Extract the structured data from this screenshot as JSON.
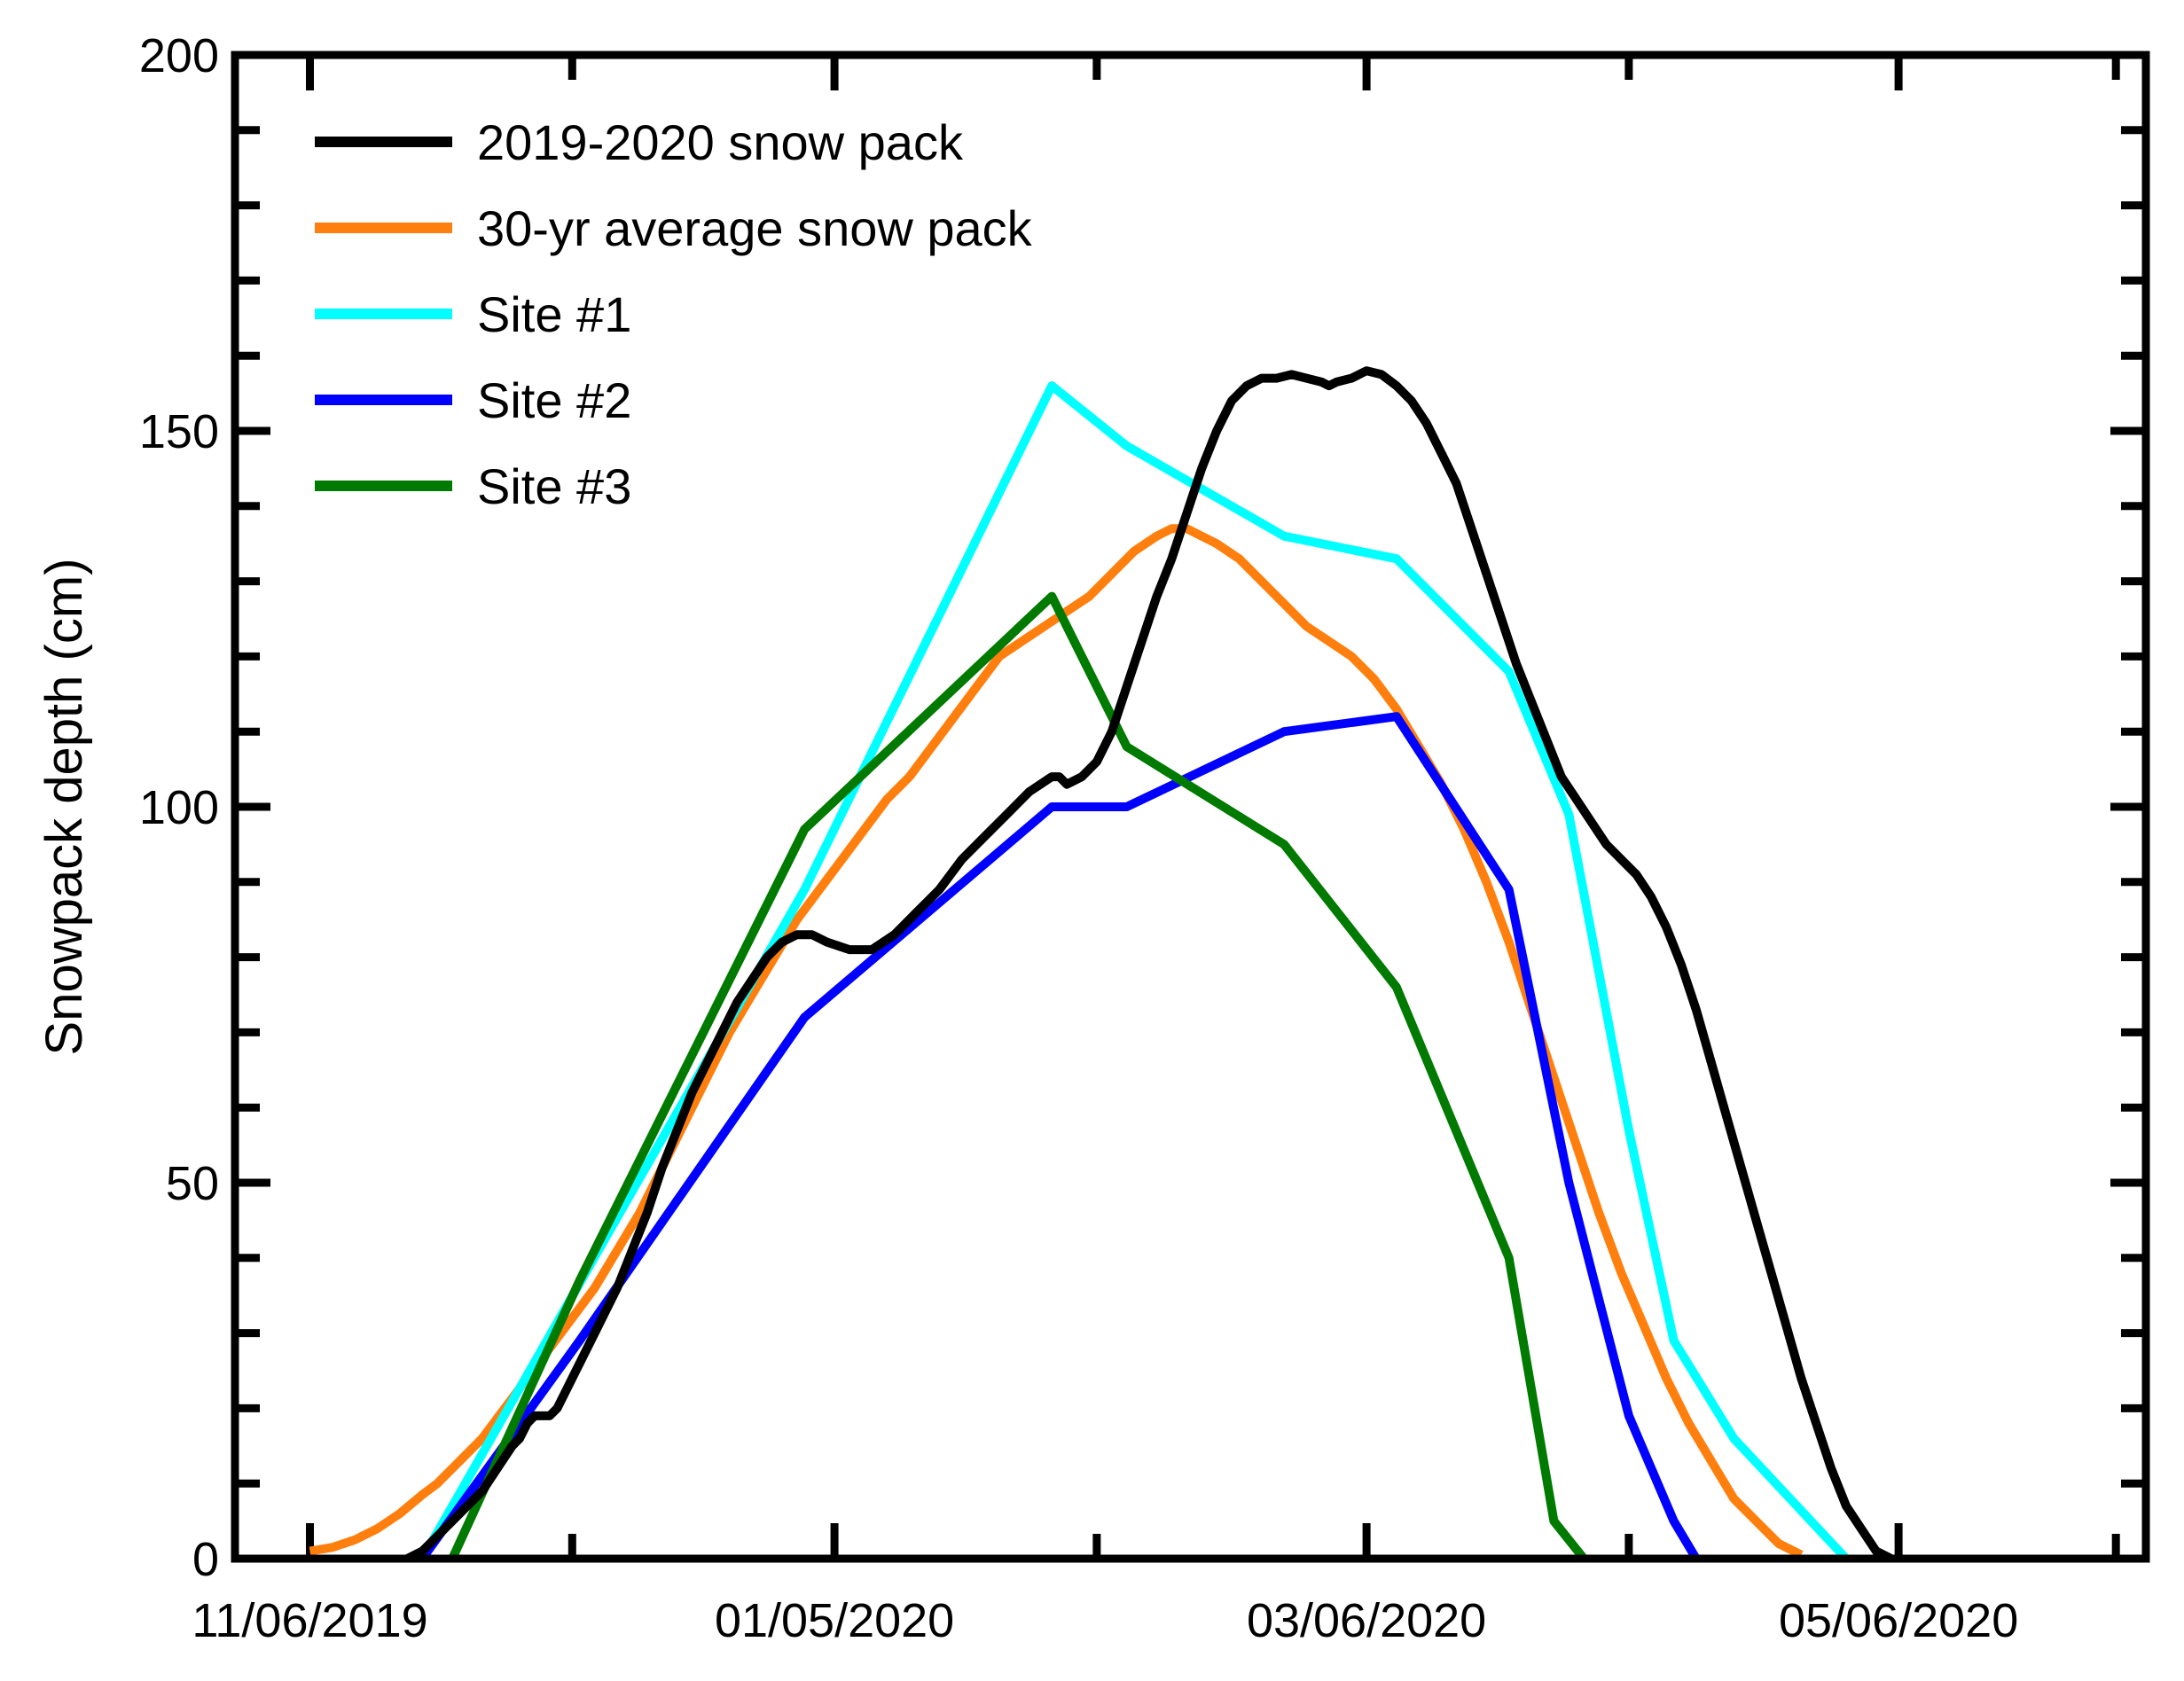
{
  "chart_data": {
    "type": "line",
    "title": "",
    "xlabel": "",
    "ylabel": "Snowpack depth (cm)",
    "ylim": [
      0,
      200
    ],
    "xlim_days": [
      -10,
      245
    ],
    "y_major_ticks": [
      0,
      50,
      100,
      150,
      200
    ],
    "y_minor_step": 10,
    "x_major_ticks": [
      {
        "label": "11/06/2019",
        "day": 0
      },
      {
        "label": "01/05/2020",
        "day": 70
      },
      {
        "label": "03/06/2020",
        "day": 141
      },
      {
        "label": "05/06/2020",
        "day": 212
      }
    ],
    "x_minor_ticks_days": [
      35,
      105,
      176,
      241
    ],
    "legend_position": "top-left",
    "series": [
      {
        "name": "2019-2020 snow pack",
        "color": "#000000",
        "points": [
          [
            13,
            0
          ],
          [
            15,
            1
          ],
          [
            17,
            3
          ],
          [
            19,
            5
          ],
          [
            21,
            7
          ],
          [
            23,
            9
          ],
          [
            25,
            12
          ],
          [
            27,
            15
          ],
          [
            28,
            16
          ],
          [
            29,
            18
          ],
          [
            30,
            19
          ],
          [
            31,
            19
          ],
          [
            32,
            19
          ],
          [
            33,
            20
          ],
          [
            35,
            24
          ],
          [
            37,
            28
          ],
          [
            39,
            32
          ],
          [
            41,
            36
          ],
          [
            43,
            41
          ],
          [
            45,
            46
          ],
          [
            47,
            52
          ],
          [
            49,
            57
          ],
          [
            51,
            62
          ],
          [
            53,
            66
          ],
          [
            55,
            70
          ],
          [
            57,
            74
          ],
          [
            59,
            77
          ],
          [
            61,
            80
          ],
          [
            63,
            82
          ],
          [
            65,
            83
          ],
          [
            67,
            83
          ],
          [
            69,
            82
          ],
          [
            72,
            81
          ],
          [
            75,
            81
          ],
          [
            78,
            83
          ],
          [
            81,
            86
          ],
          [
            84,
            89
          ],
          [
            87,
            93
          ],
          [
            90,
            96
          ],
          [
            93,
            99
          ],
          [
            96,
            102
          ],
          [
            99,
            104
          ],
          [
            100,
            104
          ],
          [
            101,
            103
          ],
          [
            103,
            104
          ],
          [
            105,
            106
          ],
          [
            107,
            110
          ],
          [
            109,
            116
          ],
          [
            111,
            122
          ],
          [
            113,
            128
          ],
          [
            115,
            133
          ],
          [
            117,
            139
          ],
          [
            119,
            145
          ],
          [
            121,
            150
          ],
          [
            123,
            154
          ],
          [
            125,
            156
          ],
          [
            127,
            157
          ],
          [
            129,
            157
          ],
          [
            131,
            157.5
          ],
          [
            133,
            157
          ],
          [
            135,
            156.5
          ],
          [
            136,
            156
          ],
          [
            137,
            156.5
          ],
          [
            139,
            157
          ],
          [
            141,
            158
          ],
          [
            143,
            157.5
          ],
          [
            145,
            156
          ],
          [
            147,
            154
          ],
          [
            149,
            151
          ],
          [
            151,
            147
          ],
          [
            153,
            143
          ],
          [
            155,
            137
          ],
          [
            157,
            131
          ],
          [
            159,
            125
          ],
          [
            161,
            119
          ],
          [
            163,
            114
          ],
          [
            165,
            109
          ],
          [
            167,
            104
          ],
          [
            169,
            101
          ],
          [
            171,
            98
          ],
          [
            173,
            95
          ],
          [
            175,
            93
          ],
          [
            177,
            91
          ],
          [
            179,
            88
          ],
          [
            181,
            84
          ],
          [
            183,
            79
          ],
          [
            185,
            73
          ],
          [
            187,
            66
          ],
          [
            189,
            59
          ],
          [
            191,
            52
          ],
          [
            193,
            45
          ],
          [
            195,
            38
          ],
          [
            197,
            31
          ],
          [
            199,
            24
          ],
          [
            201,
            18
          ],
          [
            203,
            12
          ],
          [
            205,
            7
          ],
          [
            207,
            4
          ],
          [
            209,
            1
          ],
          [
            211,
            0
          ]
        ]
      },
      {
        "name": "30-yr average snow pack",
        "color": "#ff7f0e",
        "points": [
          [
            0,
            1
          ],
          [
            3,
            1.5
          ],
          [
            6,
            2.5
          ],
          [
            9,
            4
          ],
          [
            12,
            6
          ],
          [
            15,
            8.5
          ],
          [
            17,
            10
          ],
          [
            20,
            13
          ],
          [
            23,
            16
          ],
          [
            26,
            20
          ],
          [
            29,
            24
          ],
          [
            32,
            28
          ],
          [
            35,
            32
          ],
          [
            38,
            36
          ],
          [
            41,
            41
          ],
          [
            44,
            46
          ],
          [
            47,
            52
          ],
          [
            50,
            58
          ],
          [
            53,
            64
          ],
          [
            56,
            70
          ],
          [
            59,
            75
          ],
          [
            62,
            80
          ],
          [
            65,
            85
          ],
          [
            68,
            89
          ],
          [
            71,
            93
          ],
          [
            74,
            97
          ],
          [
            77,
            101
          ],
          [
            80,
            104
          ],
          [
            83,
            108
          ],
          [
            86,
            112
          ],
          [
            89,
            116
          ],
          [
            92,
            120
          ],
          [
            95,
            122
          ],
          [
            98,
            124
          ],
          [
            101,
            126
          ],
          [
            104,
            128
          ],
          [
            107,
            131
          ],
          [
            110,
            134
          ],
          [
            113,
            136
          ],
          [
            115,
            137
          ],
          [
            117,
            137
          ],
          [
            119,
            136
          ],
          [
            121,
            135
          ],
          [
            124,
            133
          ],
          [
            127,
            130
          ],
          [
            130,
            127
          ],
          [
            133,
            124
          ],
          [
            136,
            122
          ],
          [
            139,
            120
          ],
          [
            142,
            117
          ],
          [
            145,
            113
          ],
          [
            148,
            108
          ],
          [
            151,
            103
          ],
          [
            154,
            97
          ],
          [
            157,
            90
          ],
          [
            160,
            82
          ],
          [
            163,
            73
          ],
          [
            166,
            64
          ],
          [
            169,
            55
          ],
          [
            172,
            46
          ],
          [
            175,
            38
          ],
          [
            178,
            31
          ],
          [
            181,
            24
          ],
          [
            184,
            18
          ],
          [
            187,
            13
          ],
          [
            190,
            8
          ],
          [
            193,
            5
          ],
          [
            196,
            2
          ],
          [
            199,
            0.5
          ]
        ]
      },
      {
        "name": "Site #1",
        "color": "#00ffff",
        "points": [
          [
            15,
            0
          ],
          [
            66,
            89
          ],
          [
            99,
            156
          ],
          [
            109,
            148
          ],
          [
            130,
            136
          ],
          [
            145,
            133
          ],
          [
            160,
            118
          ],
          [
            168,
            99
          ],
          [
            176,
            57
          ],
          [
            182,
            29
          ],
          [
            190,
            16
          ],
          [
            205,
            0
          ]
        ]
      },
      {
        "name": "Site #2",
        "color": "#0000ff",
        "points": [
          [
            15,
            0
          ],
          [
            36,
            29
          ],
          [
            66,
            72
          ],
          [
            99,
            100
          ],
          [
            109,
            100
          ],
          [
            130,
            110
          ],
          [
            145,
            112
          ],
          [
            160,
            89
          ],
          [
            168,
            50
          ],
          [
            176,
            19
          ],
          [
            182,
            5
          ],
          [
            185,
            0
          ]
        ]
      },
      {
        "name": "Site #3",
        "color": "#007a00",
        "points": [
          [
            19,
            0
          ],
          [
            36,
            37
          ],
          [
            66,
            97
          ],
          [
            99,
            128
          ],
          [
            109,
            108
          ],
          [
            130,
            95
          ],
          [
            145,
            76
          ],
          [
            160,
            40
          ],
          [
            166,
            5
          ],
          [
            170,
            0
          ]
        ]
      }
    ]
  }
}
